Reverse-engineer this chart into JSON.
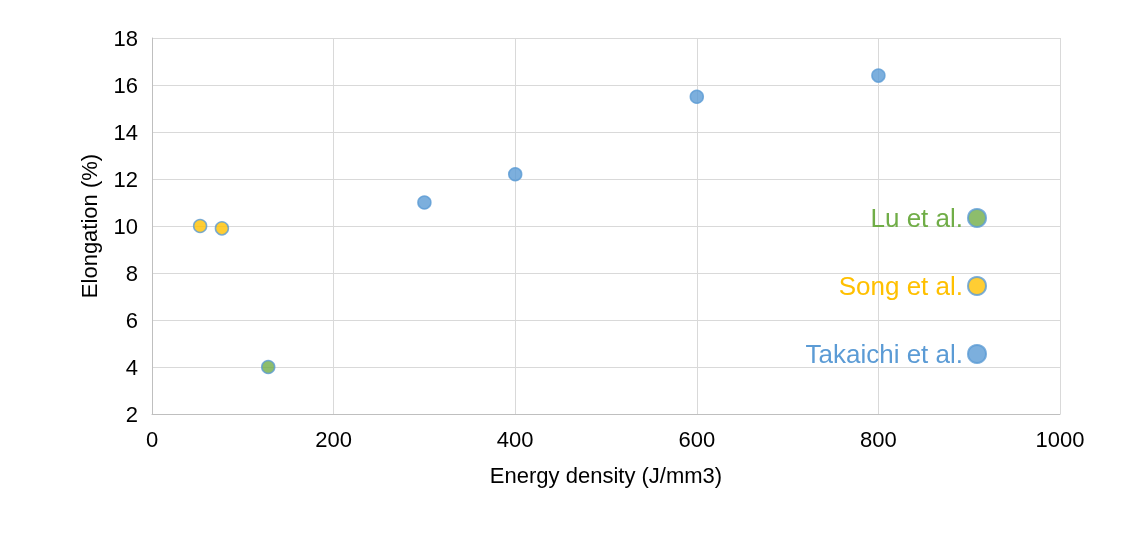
{
  "chart_data": {
    "type": "scatter",
    "xlabel": "Energy density (J/mm3)",
    "ylabel": "Elongation (%)",
    "xlim": [
      0,
      1000
    ],
    "xticks": [
      0,
      200,
      400,
      600,
      800,
      1000
    ],
    "ylim": [
      2,
      18
    ],
    "yticks": [
      2,
      4,
      6,
      8,
      10,
      12,
      14,
      16,
      18
    ],
    "grid": true,
    "legend": "right",
    "marker": "circle",
    "series": [
      {
        "name": "Lu et al.",
        "color": "#70ad47",
        "x": [
          128
        ],
        "values": [
          4
        ]
      },
      {
        "name": "Song et al.",
        "color": "#ffc000",
        "x": [
          53,
          77
        ],
        "values": [
          10,
          9.9
        ]
      },
      {
        "name": "Takaichi et al.",
        "color": "#5b9bd5",
        "x": [
          300,
          400,
          600,
          800
        ],
        "values": [
          11,
          12.2,
          15.5,
          16.4
        ]
      }
    ]
  }
}
